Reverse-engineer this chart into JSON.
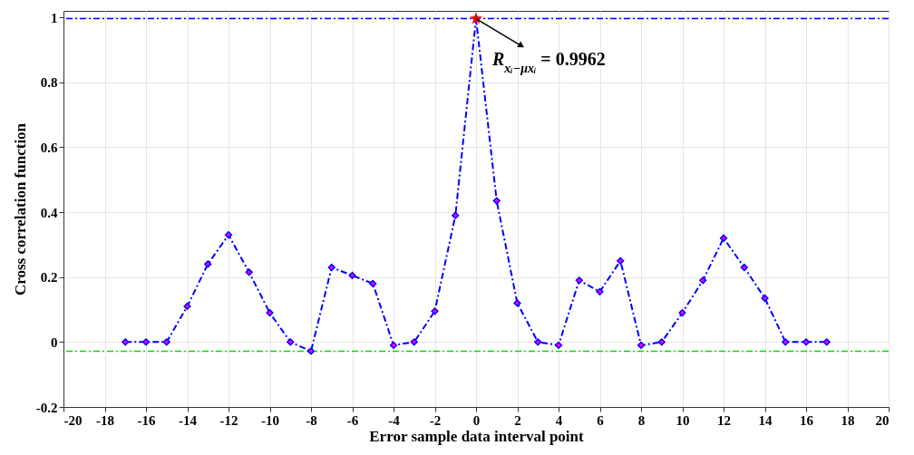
{
  "chart_data": {
    "type": "line",
    "xlabel": "Error sample data interval point",
    "ylabel": "Cross correlation function",
    "x": [
      -17,
      -16,
      -15,
      -14,
      -13,
      -12,
      -11,
      -10,
      -9,
      -8,
      -7,
      -6,
      -5,
      -4,
      -3,
      -2,
      -1,
      0,
      1,
      2,
      3,
      4,
      5,
      6,
      7,
      8,
      9,
      10,
      11,
      12,
      13,
      14,
      15,
      16,
      17
    ],
    "series": [
      {
        "type": "line",
        "color": "#0000ff",
        "marker": "diamond",
        "line_style": "dashed",
        "values": [
          0,
          0,
          0,
          0.11,
          0.24,
          0.33,
          0.215,
          0.09,
          0,
          -0.028,
          0.23,
          0.205,
          0.18,
          -0.01,
          0,
          0.095,
          0.39,
          0.9962,
          0.435,
          0.12,
          0,
          -0.01,
          0.19,
          0.155,
          0.25,
          -0.01,
          0,
          0.09,
          0.19,
          0.32,
          0.23,
          0.135,
          0,
          0,
          0
        ]
      },
      {
        "type": "scatter",
        "color": "#ff0000",
        "marker": "star",
        "x": [
          0
        ],
        "values": [
          0.9962
        ]
      }
    ],
    "xlim": [
      -20,
      20
    ],
    "ylim": [
      -0.2,
      1.02
    ],
    "xticks": [
      -20,
      -18,
      -16,
      -14,
      -12,
      -10,
      -8,
      -6,
      -4,
      -2,
      0,
      2,
      4,
      6,
      8,
      10,
      12,
      14,
      16,
      18,
      20
    ],
    "yticks": [
      -0.2,
      0,
      0.2,
      0.4,
      0.6,
      0.8,
      1
    ],
    "grid": true,
    "ref_lines": [
      {
        "axis": "y",
        "value": 0.9962,
        "color": "#0000ff",
        "line_style": "dashed"
      },
      {
        "axis": "y",
        "value": -0.028,
        "color": "#00dd00",
        "line_style": "dashed"
      }
    ],
    "annotations": [
      {
        "text": "R$_{xᵢ−μxᵢ}$ = 0.9962",
        "x": 0,
        "y": 0.9962
      }
    ]
  }
}
